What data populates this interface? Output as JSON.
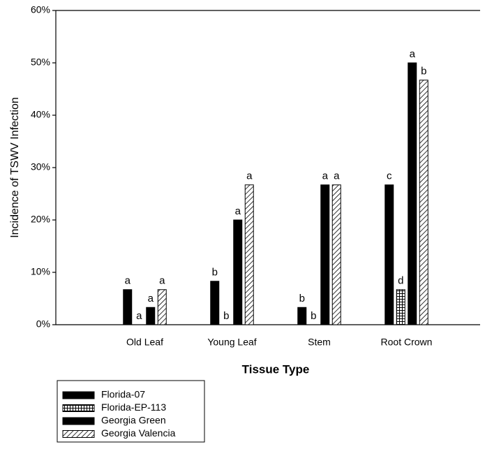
{
  "chart_data": {
    "type": "bar",
    "ylabel": "Incidence of TSWV Infection",
    "xlabel": "Tissue Type",
    "categories": [
      "Old Leaf",
      "Young Leaf",
      "Stem",
      "Root Crown"
    ],
    "ylim": [
      0,
      60
    ],
    "yticks": [
      {
        "value": 0,
        "label": "0%"
      },
      {
        "value": 10,
        "label": "10%"
      },
      {
        "value": 20,
        "label": "20%"
      },
      {
        "value": 30,
        "label": "30%"
      },
      {
        "value": 40,
        "label": "40%"
      },
      {
        "value": 50,
        "label": "50%"
      },
      {
        "value": 60,
        "label": "60%"
      }
    ],
    "series": [
      {
        "name": "Florida-07",
        "color": "#000000",
        "pattern": "solid",
        "values": [
          6.7,
          8.3,
          3.3,
          26.7
        ],
        "letters": [
          "a",
          "b",
          "b",
          "c"
        ]
      },
      {
        "name": "Florida-EP-113",
        "color": "#000000",
        "pattern": "grid",
        "values": [
          0,
          0,
          0,
          6.7
        ],
        "letters": [
          "a",
          "b",
          "b",
          "d"
        ]
      },
      {
        "name": "Georgia Green",
        "color": "#000000",
        "pattern": "solid",
        "values": [
          3.3,
          20,
          26.7,
          50
        ],
        "letters": [
          "a",
          "a",
          "a",
          "a"
        ]
      },
      {
        "name": "Georgia Valencia",
        "color": "#000000",
        "pattern": "diagonal",
        "values": [
          6.7,
          26.7,
          26.7,
          46.7
        ],
        "letters": [
          "a",
          "a",
          "a",
          "b"
        ]
      }
    ],
    "legend": "bottom-left"
  }
}
